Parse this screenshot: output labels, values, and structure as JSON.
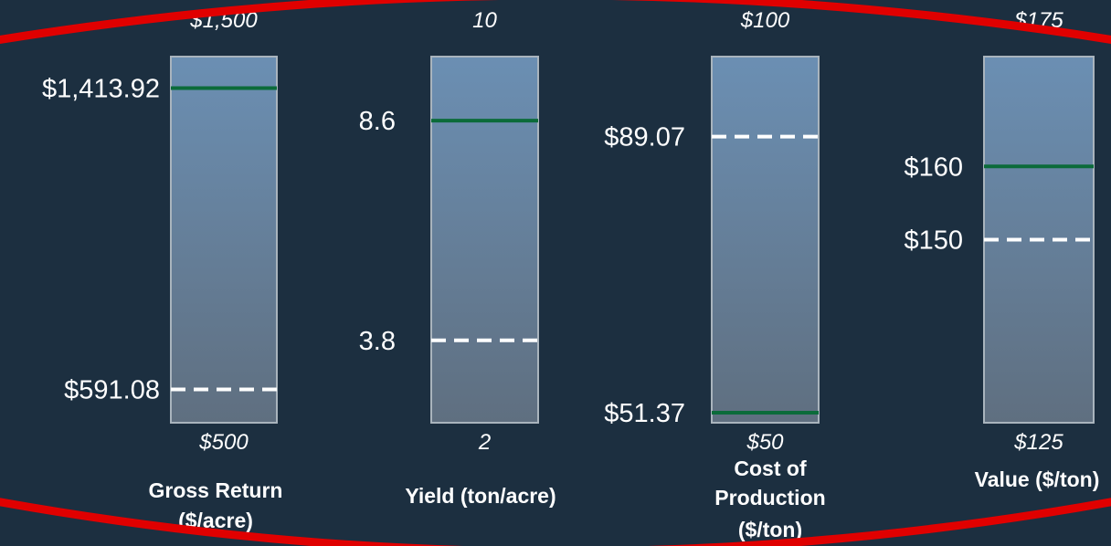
{
  "chart_data": {
    "type": "bar",
    "gauges": [
      {
        "title_lines": [
          "Gross Return",
          "($/acre)"
        ],
        "max_label": "$1,500",
        "min_label": "$500",
        "min": 500,
        "max": 1500,
        "markers": [
          {
            "value": 1413.92,
            "label": "$1,413.92",
            "style": "solid",
            "color": "#0b6b3a"
          },
          {
            "value": 591.08,
            "label": "$591.08",
            "style": "dashed",
            "color": "#ffffff"
          }
        ]
      },
      {
        "title_lines": [
          "Yield (ton/acre)"
        ],
        "max_label": "10",
        "min_label": "2",
        "min": 2,
        "max": 10,
        "markers": [
          {
            "value": 8.6,
            "label": "8.6",
            "style": "solid",
            "color": "#0b6b3a"
          },
          {
            "value": 3.8,
            "label": "3.8",
            "style": "dashed",
            "color": "#ffffff"
          }
        ]
      },
      {
        "title_lines": [
          "Cost of",
          "Production",
          "($/ton)"
        ],
        "max_label": "$100",
        "min_label": "$50",
        "min": 50,
        "max": 100,
        "markers": [
          {
            "value": 89.07,
            "label": "$89.07",
            "style": "dashed",
            "color": "#ffffff"
          },
          {
            "value": 51.37,
            "label": "$51.37",
            "style": "solid",
            "color": "#0b6b3a"
          }
        ]
      },
      {
        "title_lines": [
          "Value ($/ton)"
        ],
        "max_label": "$175",
        "min_label": "$125",
        "min": 125,
        "max": 175,
        "markers": [
          {
            "value": 160,
            "label": "$160",
            "style": "solid",
            "color": "#0b6b3a"
          },
          {
            "value": 150,
            "label": "$150",
            "style": "dashed",
            "color": "#ffffff"
          }
        ]
      }
    ]
  },
  "colors": {
    "background": "#1c2f40",
    "bar_top": "#6b8fb3",
    "bar_bottom": "#5f6f80",
    "bar_border": "#a9b4bd",
    "frame": "#e00000",
    "text": "#ffffff"
  }
}
